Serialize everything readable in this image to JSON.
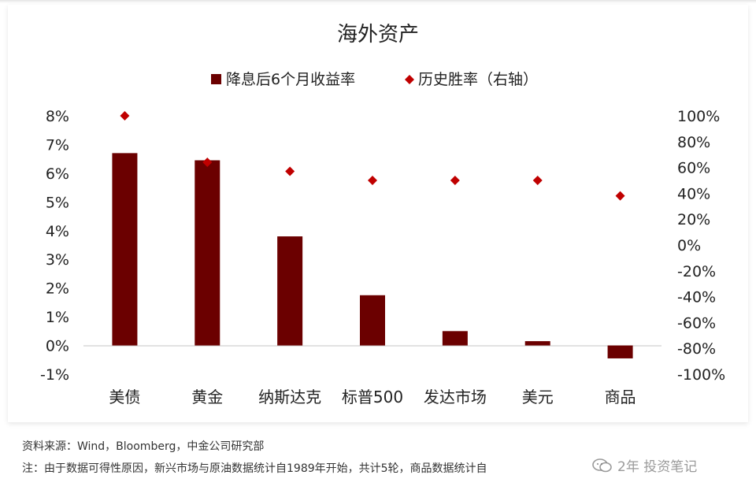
{
  "chart_data": {
    "type": "bar",
    "title": "海外资产",
    "categories": [
      "美债",
      "黄金",
      "纳斯达克",
      "标普500",
      "发达市场",
      "美元",
      "商品"
    ],
    "series": [
      {
        "name": "降息后6个月收益率",
        "type": "bar",
        "axis": "left",
        "color": "#6b0000",
        "values": [
          6.7,
          6.45,
          3.8,
          1.75,
          0.5,
          0.15,
          -0.45
        ]
      },
      {
        "name": "历史胜率（右轴）",
        "type": "scatter",
        "marker": "diamond",
        "axis": "right",
        "color": "#c00000",
        "values": [
          100,
          64,
          57,
          50,
          50,
          50,
          38
        ]
      }
    ],
    "y_left": {
      "ylim": [
        -1,
        8
      ],
      "ticks": [
        8,
        7,
        6,
        5,
        4,
        3,
        2,
        1,
        0,
        -1
      ],
      "tick_labels": [
        "8%",
        "7%",
        "6%",
        "5%",
        "4%",
        "3%",
        "2%",
        "1%",
        "0%",
        "-1%"
      ]
    },
    "y_right": {
      "ylim": [
        -100,
        100
      ],
      "ticks": [
        100,
        80,
        60,
        40,
        20,
        0,
        -20,
        -40,
        -60,
        -80,
        -100
      ],
      "tick_labels": [
        "100%",
        "80%",
        "60%",
        "40%",
        "20%",
        "0%",
        "-20%",
        "-40%",
        "-60%",
        "-80%",
        "-100%"
      ]
    },
    "legend_position": "top-center",
    "grid": false
  },
  "footer": {
    "source": "资料来源：Wind，Bloomberg，中金公司研究部",
    "note": "注：由于数据可得性原因，新兴市场与原油数据统计自1989年开始，共计5轮，商品数据统计自"
  },
  "watermark": {
    "text": "2年 投资笔记",
    "icon": "wechat-icon"
  }
}
